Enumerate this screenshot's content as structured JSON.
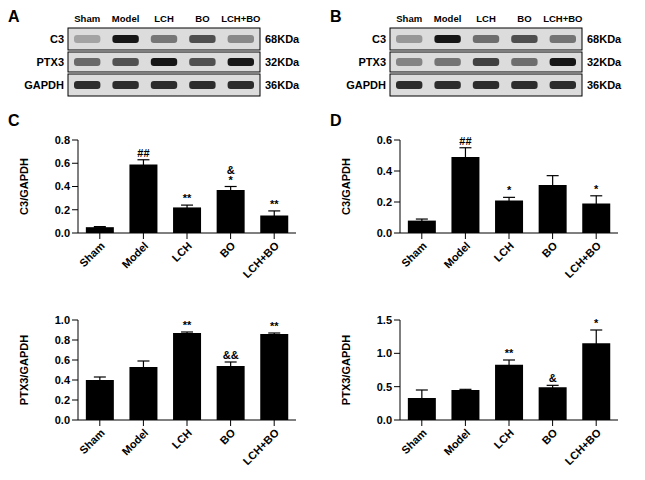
{
  "panel_labels": [
    "A",
    "B",
    "C",
    "D"
  ],
  "blots": [
    {
      "lanes": [
        "Sham",
        "Model",
        "LCH",
        "BO",
        "LCH+BO"
      ],
      "rows": [
        {
          "label": "C3",
          "size": "68KDa"
        },
        {
          "label": "PTX3",
          "size": "32KDa"
        },
        {
          "label": "GAPDH",
          "size": "36KDa"
        }
      ]
    },
    {
      "lanes": [
        "Sham",
        "Model",
        "LCH",
        "BO",
        "LCH+BO"
      ],
      "rows": [
        {
          "label": "C3",
          "size": "68KDa"
        },
        {
          "label": "PTX3",
          "size": "32KDa"
        },
        {
          "label": "GAPDH",
          "size": "36KDa"
        }
      ]
    }
  ],
  "chart_data": [
    {
      "type": "bar",
      "ylabel": "C3/GAPDH",
      "categories": [
        "Sham",
        "Model",
        "LCH",
        "BO",
        "LCH+BO"
      ],
      "values": [
        0.05,
        0.59,
        0.22,
        0.37,
        0.15
      ],
      "errors": [
        0.005,
        0.04,
        0.02,
        0.03,
        0.04
      ],
      "annotations": [
        [],
        [
          "##"
        ],
        [
          "**"
        ],
        [
          "&",
          "*"
        ],
        [
          "**"
        ]
      ],
      "color": "#000000",
      "ylim": [
        0,
        0.8
      ],
      "yticks": [
        {
          "value": 0,
          "label": "0.0"
        },
        0.2,
        0.4,
        0.6,
        0.8
      ]
    },
    {
      "type": "bar",
      "ylabel": "PTX3/GAPDH",
      "categories": [
        "Sham",
        "Model",
        "LCH",
        "BO",
        "LCH+BO"
      ],
      "values": [
        0.4,
        0.53,
        0.87,
        0.54,
        0.86
      ],
      "errors": [
        0.03,
        0.06,
        0.01,
        0.04,
        0.01
      ],
      "annotations": [
        [],
        [],
        [
          "**"
        ],
        [
          "&&"
        ],
        [
          "**"
        ]
      ],
      "color": "#000000",
      "ylim": [
        0,
        1.0
      ],
      "yticks": [
        {
          "value": 0,
          "label": "0.0"
        },
        0.2,
        0.4,
        0.6,
        0.8,
        {
          "value": 1,
          "label": "1.0"
        }
      ]
    },
    {
      "type": "bar",
      "ylabel": "C3/GAPDH",
      "categories": [
        "Sham",
        "Model",
        "LCH",
        "BO",
        "LCH+BO"
      ],
      "values": [
        0.08,
        0.49,
        0.21,
        0.31,
        0.19
      ],
      "errors": [
        0.01,
        0.06,
        0.02,
        0.06,
        0.05
      ],
      "annotations": [
        [],
        [
          "##"
        ],
        [
          "*"
        ],
        [],
        [
          "*"
        ]
      ],
      "color": "#000000",
      "ylim": [
        0,
        0.6
      ],
      "yticks": [
        {
          "value": 0,
          "label": "0.0"
        },
        0.2,
        0.4,
        0.6
      ]
    },
    {
      "type": "bar",
      "ylabel": "PTX3/GAPDH",
      "categories": [
        "Sham",
        "Model",
        "LCH",
        "BO",
        "LCH+BO"
      ],
      "values": [
        0.33,
        0.45,
        0.83,
        0.49,
        1.15
      ],
      "errors": [
        0.12,
        0.01,
        0.07,
        0.03,
        0.2
      ],
      "annotations": [
        [],
        [],
        [
          "**"
        ],
        [
          "&"
        ],
        [
          "*"
        ]
      ],
      "color": "#000000",
      "ylim": [
        0,
        1.5
      ],
      "yticks": [
        {
          "value": 0,
          "label": "0.0"
        },
        0.5,
        {
          "value": 1,
          "label": "1.0"
        },
        1.5
      ]
    }
  ]
}
